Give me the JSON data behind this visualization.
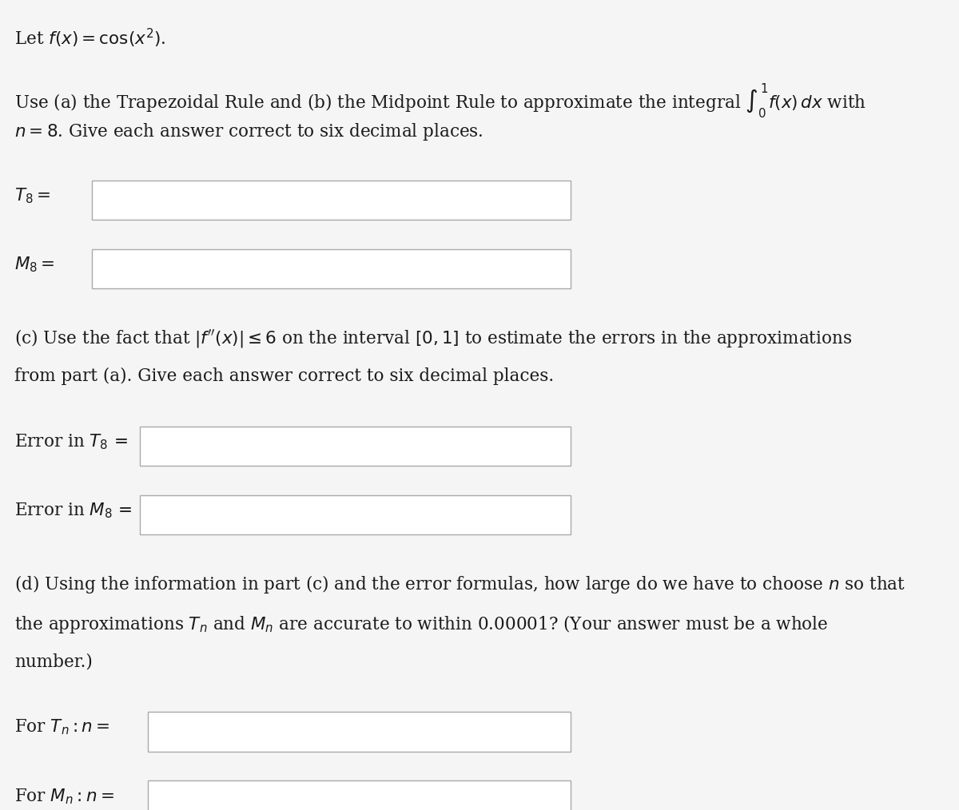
{
  "bg_color": "#f5f5f5",
  "text_color": "#1a1a1a",
  "box_color": "#ffffff",
  "box_edge_color": "#aaaaaa",
  "font_size_main": 15.5,
  "font_size_label": 15.5,
  "line1": "Let $f(x) = \\cos(x^2)$.",
  "line2a": "Use (a) the Trapezoidal Rule and (b) the Midpoint Rule to approximate the integral $\\int_0^1 f(x)\\,dx$ with",
  "line2b": "$n = 8$. Give each answer correct to six decimal places.",
  "label_T8": "$T_8 =$",
  "label_M8": "$M_8 =$",
  "line_c1": "(c) Use the fact that $|f^{\\prime\\prime}(x)| \\leq 6$ on the interval $[0, 1]$ to estimate the errors in the approximations",
  "line_c2": "from part (a). Give each answer correct to six decimal places.",
  "label_errT8": "Error in $T_8$ =",
  "label_errM8": "Error in $M_8$ =",
  "line_d1": "(d) Using the information in part (c) and the error formulas, how large do we have to choose $n$ so that",
  "line_d2": "the approximations $T_n$ and $M_n$ are accurate to within 0.00001? (Your answer must be a whole",
  "line_d3": "number.)",
  "label_forTn": "For $T_n : n =$",
  "label_forMn": "For $M_n : n =$"
}
